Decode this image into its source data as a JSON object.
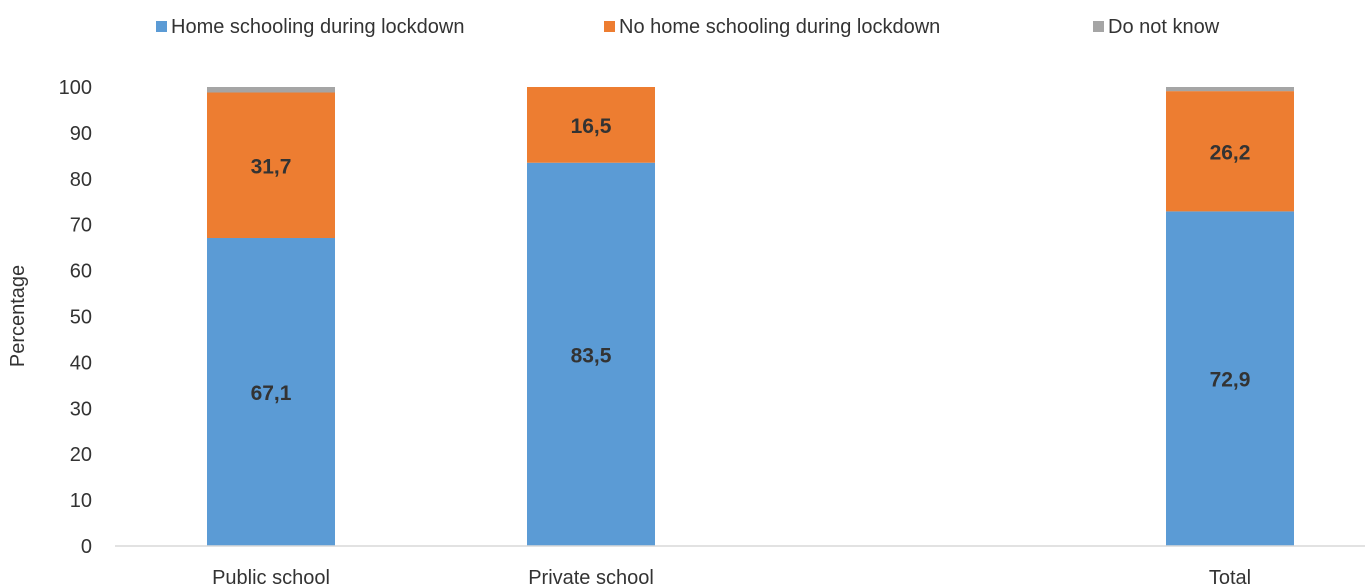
{
  "chart_data": {
    "type": "bar",
    "stacked": true,
    "categories": [
      "Public school",
      "Private school",
      "Total"
    ],
    "series": [
      {
        "name": "Home schooling during lockdown",
        "values": [
          67.1,
          83.5,
          72.9
        ],
        "labels": [
          "67,1",
          "83,5",
          "72,9"
        ],
        "color": "#5b9bd5"
      },
      {
        "name": "No home schooling during lockdown",
        "values": [
          31.7,
          16.5,
          26.2
        ],
        "labels": [
          "31,7",
          "16,5",
          "26,2"
        ],
        "color": "#ed7d31"
      },
      {
        "name": "Do not know",
        "values": [
          1.2,
          0,
          0.9
        ],
        "labels": [
          "",
          "",
          ""
        ],
        "color": "#a5a5a5"
      }
    ],
    "ylabel": "Percentage",
    "xlabel": "",
    "ylim": [
      0,
      100
    ],
    "yticks": [
      "0",
      "10",
      "20",
      "30",
      "40",
      "50",
      "60",
      "70",
      "80",
      "90",
      "100"
    ],
    "grid": false,
    "legend_position": "top"
  }
}
